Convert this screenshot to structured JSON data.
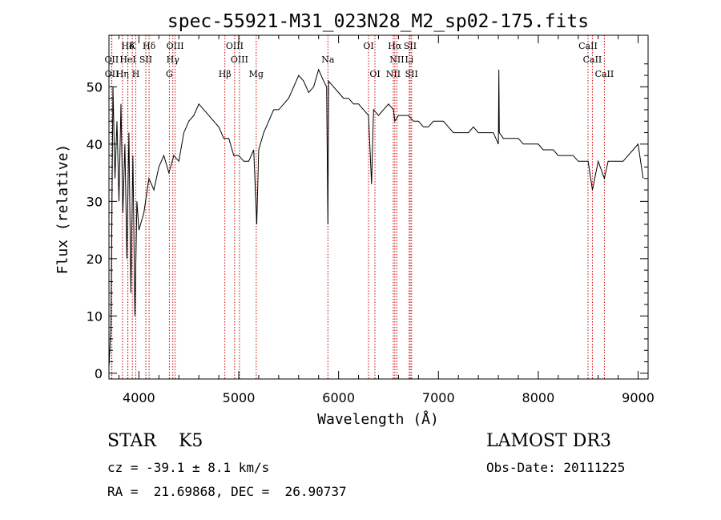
{
  "chart_data": {
    "type": "line",
    "title": "spec-55921-M31_023N28_M2_sp02-175.fits",
    "xlabel": "Wavelength (Å)",
    "ylabel": "Flux (relative)",
    "xlim": [
      3700,
      9100
    ],
    "ylim": [
      -1,
      59
    ],
    "xticks": [
      4000,
      5000,
      6000,
      7000,
      8000,
      9000
    ],
    "yticks": [
      0,
      10,
      20,
      30,
      40,
      50
    ],
    "grid": false,
    "series": [
      {
        "name": "flux",
        "x": [
          3700,
          3720,
          3740,
          3760,
          3780,
          3800,
          3820,
          3840,
          3860,
          3880,
          3900,
          3920,
          3940,
          3960,
          3980,
          4000,
          4050,
          4100,
          4150,
          4200,
          4250,
          4300,
          4350,
          4400,
          4450,
          4500,
          4550,
          4600,
          4650,
          4700,
          4750,
          4800,
          4850,
          4900,
          4950,
          5000,
          5050,
          5100,
          5150,
          5180,
          5200,
          5250,
          5300,
          5350,
          5400,
          5450,
          5500,
          5550,
          5600,
          5650,
          5700,
          5750,
          5800,
          5850,
          5880,
          5893,
          5900,
          5950,
          6000,
          6050,
          6100,
          6150,
          6200,
          6250,
          6300,
          6330,
          6350,
          6400,
          6450,
          6500,
          6550,
          6563,
          6600,
          6650,
          6700,
          6750,
          6800,
          6850,
          6900,
          6950,
          7000,
          7050,
          7100,
          7150,
          7200,
          7250,
          7300,
          7350,
          7400,
          7450,
          7500,
          7550,
          7600,
          7605,
          7610,
          7650,
          7700,
          7750,
          7800,
          7850,
          7900,
          7950,
          8000,
          8050,
          8100,
          8150,
          8200,
          8250,
          8300,
          8350,
          8400,
          8450,
          8500,
          8542,
          8600,
          8662,
          8700,
          8750,
          8800,
          8850,
          8900,
          8950,
          9000,
          9050
        ],
        "y": [
          1,
          8,
          50,
          34,
          44,
          30,
          47,
          28,
          40,
          20,
          42,
          14,
          38,
          10,
          30,
          25,
          28,
          34,
          32,
          36,
          38,
          35,
          38,
          37,
          42,
          44,
          45,
          47,
          46,
          45,
          44,
          43,
          41,
          41,
          38,
          38,
          37,
          37,
          39,
          26,
          39,
          42,
          44,
          46,
          46,
          47,
          48,
          50,
          52,
          51,
          49,
          50,
          53,
          51,
          50,
          26,
          51,
          50,
          49,
          48,
          48,
          47,
          47,
          46,
          45,
          33,
          46,
          45,
          46,
          47,
          46,
          44,
          45,
          45,
          45,
          44,
          44,
          43,
          43,
          44,
          44,
          44,
          43,
          42,
          42,
          42,
          42,
          43,
          42,
          42,
          42,
          42,
          40,
          53,
          42,
          41,
          41,
          41,
          41,
          40,
          40,
          40,
          40,
          39,
          39,
          39,
          38,
          38,
          38,
          38,
          37,
          37,
          37,
          32,
          37,
          34,
          37,
          37,
          37,
          37,
          38,
          39,
          40,
          34
        ]
      }
    ],
    "lines": [
      {
        "label": "Hδ",
        "wl": 3889,
        "row": 1
      },
      {
        "label": "K",
        "wl": 3934,
        "row": 1
      },
      {
        "label": "Hδ",
        "wl": 4102,
        "row": 1
      },
      {
        "label": "OIII",
        "wl": 4363,
        "row": 1
      },
      {
        "label": "OIII",
        "wl": 4959,
        "row": 1
      },
      {
        "label": "OI",
        "wl": 6300,
        "row": 1
      },
      {
        "label": "Hα",
        "wl": 6563,
        "row": 1
      },
      {
        "label": "SII",
        "wl": 6717,
        "row": 1
      },
      {
        "label": "CaII",
        "wl": 8498,
        "row": 1
      },
      {
        "label": "OII",
        "wl": 3727,
        "row": 2
      },
      {
        "label": "HeI",
        "wl": 3889,
        "row": 2
      },
      {
        "label": "SII",
        "wl": 4069,
        "row": 2
      },
      {
        "label": "Hγ",
        "wl": 4340,
        "row": 2
      },
      {
        "label": "OIII",
        "wl": 5007,
        "row": 2
      },
      {
        "label": "Na",
        "wl": 5893,
        "row": 2
      },
      {
        "label": "NII",
        "wl": 6584,
        "row": 2
      },
      {
        "label": "Li",
        "wl": 6708,
        "row": 2
      },
      {
        "label": "CaII",
        "wl": 8542,
        "row": 2
      },
      {
        "label": "OII",
        "wl": 3729,
        "row": 3
      },
      {
        "label": "Hη",
        "wl": 3835,
        "row": 3
      },
      {
        "label": "H",
        "wl": 3969,
        "row": 3
      },
      {
        "label": "G",
        "wl": 4305,
        "row": 3
      },
      {
        "label": "Hβ",
        "wl": 4861,
        "row": 3
      },
      {
        "label": "Mg",
        "wl": 5175,
        "row": 3
      },
      {
        "label": "OI",
        "wl": 6364,
        "row": 3
      },
      {
        "label": "NII",
        "wl": 6548,
        "row": 3
      },
      {
        "label": "SII",
        "wl": 6731,
        "row": 3
      },
      {
        "label": "CaII",
        "wl": 8662,
        "row": 3
      }
    ],
    "colors": {
      "spectrum": "#000000",
      "lines": "#cc0000",
      "axes": "#000000"
    }
  },
  "info": {
    "class_line": "STAR    K5",
    "survey": "LAMOST DR3",
    "cz": "cz = -39.1 ± 8.1 km/s",
    "obs_date": "Obs-Date: 20111225",
    "coords": "RA =  21.69868, DEC =  26.90737"
  }
}
